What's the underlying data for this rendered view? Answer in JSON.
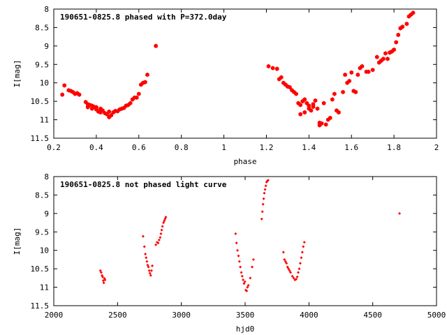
{
  "colors": {
    "series": "#ff0000",
    "axes": "#000000",
    "background": "#ffffff"
  },
  "chart_data": [
    {
      "type": "scatter",
      "title": "190651-0825.8 phased with P=372.0day",
      "xlabel": "phase",
      "ylabel": "I[mag]",
      "xlim": [
        0.2,
        2.0
      ],
      "ylim": [
        8,
        11.5
      ],
      "y_inverted": true,
      "grid": false,
      "marker": "filled-hexagon",
      "x_ticks": [
        0.2,
        0.4,
        0.6,
        0.8,
        1,
        1.2,
        1.4,
        1.6,
        1.8,
        2
      ],
      "x_tick_labels": [
        "0.2",
        "0.4",
        "0.6",
        "0.8",
        "1",
        "1.2",
        "1.4",
        "1.6",
        "1.8",
        "2"
      ],
      "y_ticks": [
        8,
        8.5,
        9,
        9.5,
        10,
        10.5,
        11,
        11.5
      ],
      "y_tick_labels": [
        "8",
        "8.5",
        "9",
        "9.5",
        "10",
        "10.5",
        "11",
        "11.5"
      ],
      "x": [
        0.24,
        0.25,
        0.27,
        0.28,
        0.29,
        0.3,
        0.31,
        0.32,
        0.35,
        0.36,
        0.36,
        0.37,
        0.38,
        0.38,
        0.39,
        0.4,
        0.4,
        0.41,
        0.42,
        0.42,
        0.43,
        0.44,
        0.45,
        0.46,
        0.46,
        0.47,
        0.48,
        0.49,
        0.5,
        0.51,
        0.52,
        0.53,
        0.54,
        0.55,
        0.56,
        0.57,
        0.58,
        0.59,
        0.6,
        0.61,
        0.62,
        0.63,
        0.64,
        0.68,
        1.21,
        1.23,
        1.25,
        1.26,
        1.27,
        1.28,
        1.29,
        1.3,
        1.31,
        1.32,
        1.33,
        1.34,
        1.35,
        1.36,
        1.36,
        1.37,
        1.38,
        1.38,
        1.39,
        1.4,
        1.4,
        1.41,
        1.42,
        1.42,
        1.43,
        1.44,
        1.45,
        1.45,
        1.46,
        1.47,
        1.48,
        1.49,
        1.5,
        1.51,
        1.52,
        1.53,
        1.54,
        1.56,
        1.57,
        1.58,
        1.59,
        1.6,
        1.61,
        1.62,
        1.63,
        1.64,
        1.65,
        1.67,
        1.68,
        1.7,
        1.72,
        1.73,
        1.74,
        1.75,
        1.76,
        1.77,
        1.78,
        1.79,
        1.8,
        1.81,
        1.82,
        1.83,
        1.84,
        1.86,
        1.87,
        1.88,
        1.89
      ],
      "y": [
        10.32,
        10.07,
        10.2,
        10.22,
        10.25,
        10.3,
        10.28,
        10.32,
        10.52,
        10.58,
        10.66,
        10.6,
        10.62,
        10.7,
        10.65,
        10.72,
        10.66,
        10.78,
        10.7,
        10.8,
        10.75,
        10.82,
        10.85,
        10.78,
        10.93,
        10.88,
        10.8,
        10.76,
        10.77,
        10.72,
        10.7,
        10.68,
        10.62,
        10.6,
        10.55,
        10.45,
        10.4,
        10.4,
        10.3,
        10.05,
        10.0,
        9.98,
        9.78,
        9.0,
        9.55,
        9.6,
        9.62,
        9.9,
        9.85,
        10.0,
        10.05,
        10.1,
        10.12,
        10.2,
        10.25,
        10.3,
        10.55,
        10.6,
        10.85,
        10.5,
        10.45,
        10.8,
        10.55,
        10.62,
        10.7,
        10.75,
        10.65,
        10.58,
        10.48,
        10.7,
        11.08,
        11.15,
        11.1,
        10.55,
        11.13,
        11.0,
        10.95,
        10.45,
        10.3,
        10.75,
        10.8,
        10.25,
        9.78,
        10.0,
        9.95,
        9.72,
        10.22,
        10.25,
        9.78,
        9.6,
        9.55,
        9.7,
        9.7,
        9.65,
        9.3,
        9.45,
        9.4,
        9.35,
        9.2,
        9.35,
        9.18,
        9.15,
        9.1,
        8.9,
        8.7,
        8.52,
        8.48,
        8.4,
        8.2,
        8.15,
        8.1
      ]
    },
    {
      "type": "scatter",
      "title": "190651-0825.8 not phased light curve",
      "xlabel": "hjd0",
      "ylabel": "I[mag]",
      "xlim": [
        2000,
        5000
      ],
      "ylim": [
        8,
        11.5
      ],
      "y_inverted": true,
      "grid": false,
      "marker": "small-filled-diamond",
      "x_ticks": [
        2000,
        2500,
        3000,
        3500,
        4000,
        4500,
        5000
      ],
      "x_tick_labels": [
        "2000",
        "2500",
        "3000",
        "3500",
        "4000",
        "4500",
        "5000"
      ],
      "y_ticks": [
        8,
        8.5,
        9,
        9.5,
        10,
        10.5,
        11,
        11.5
      ],
      "y_tick_labels": [
        "8",
        "8.5",
        "9",
        "9.5",
        "10",
        "10.5",
        "11",
        "11.5"
      ],
      "x": [
        2365,
        2372,
        2378,
        2383,
        2388,
        2392,
        2397,
        2402,
        2700,
        2710,
        2718,
        2724,
        2730,
        2736,
        2742,
        2748,
        2754,
        2760,
        2766,
        2772,
        2800,
        2810,
        2818,
        2826,
        2834,
        2840,
        2846,
        2852,
        2860,
        2866,
        2872,
        2878,
        3425,
        3432,
        3440,
        3448,
        3455,
        3462,
        3470,
        3477,
        3484,
        3491,
        3498,
        3505,
        3512,
        3518,
        3525,
        3540,
        3555,
        3565,
        3630,
        3635,
        3640,
        3645,
        3650,
        3656,
        3662,
        3668,
        3674,
        3680,
        3800,
        3808,
        3816,
        3824,
        3832,
        3840,
        3848,
        3856,
        3870,
        3880,
        3890,
        3900,
        3908,
        3916,
        3924,
        3932,
        3940,
        3948,
        3956,
        3964,
        4710
      ],
      "y": [
        10.55,
        10.6,
        10.68,
        10.72,
        10.82,
        10.88,
        10.76,
        10.8,
        9.62,
        9.9,
        10.1,
        10.2,
        10.3,
        10.4,
        10.45,
        10.55,
        10.62,
        10.68,
        10.55,
        10.42,
        9.85,
        9.78,
        9.8,
        9.72,
        9.65,
        9.55,
        9.45,
        9.35,
        9.25,
        9.2,
        9.15,
        9.1,
        9.55,
        9.8,
        10.0,
        10.15,
        10.3,
        10.45,
        10.6,
        10.7,
        10.8,
        10.9,
        10.85,
        11.08,
        11.1,
        11.0,
        10.95,
        10.75,
        10.45,
        10.25,
        9.15,
        8.95,
        8.75,
        8.6,
        8.45,
        8.35,
        8.25,
        8.15,
        8.12,
        8.1,
        10.05,
        10.25,
        10.3,
        10.35,
        10.45,
        10.5,
        10.55,
        10.6,
        10.7,
        10.75,
        10.8,
        10.78,
        10.72,
        10.6,
        10.5,
        10.35,
        10.2,
        10.05,
        9.9,
        9.78,
        9.0
      ]
    }
  ]
}
